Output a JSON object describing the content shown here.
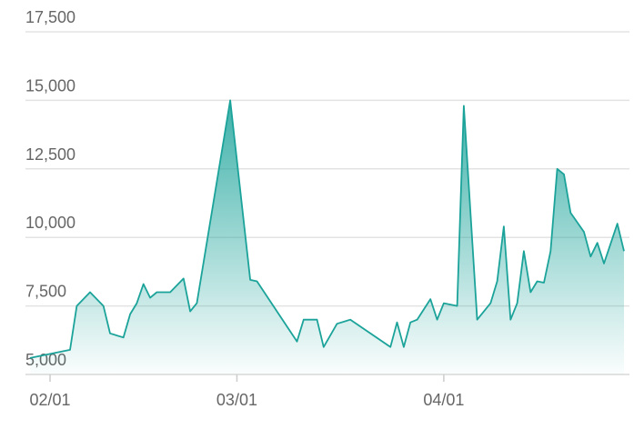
{
  "chart_data": {
    "type": "area",
    "x": [
      "01/29",
      "02/04",
      "02/05",
      "02/07",
      "02/09",
      "02/10",
      "02/12",
      "02/13",
      "02/14",
      "02/15",
      "02/16",
      "02/17",
      "02/19",
      "02/21",
      "02/22",
      "02/23",
      "02/28",
      "03/03",
      "03/04",
      "03/10",
      "03/11",
      "03/13",
      "03/14",
      "03/16",
      "03/18",
      "03/24",
      "03/25",
      "03/26",
      "03/27",
      "03/28",
      "03/30",
      "03/31",
      "04/01",
      "04/03",
      "04/04",
      "04/06",
      "04/08",
      "04/09",
      "04/10",
      "04/11",
      "04/12",
      "04/13",
      "04/14",
      "04/15",
      "04/16",
      "04/17",
      "04/18",
      "04/19",
      "04/20",
      "04/22",
      "04/23",
      "04/24",
      "04/25",
      "04/27",
      "04/28"
    ],
    "values": [
      5600,
      5900,
      7500,
      8000,
      7500,
      6500,
      6350,
      7200,
      7600,
      8300,
      7800,
      8000,
      8000,
      8500,
      7300,
      7600,
      15000,
      8450,
      8400,
      6200,
      7000,
      7000,
      6000,
      6850,
      7000,
      6000,
      6900,
      6000,
      6900,
      7000,
      7750,
      7000,
      7600,
      7500,
      14800,
      7000,
      7600,
      8400,
      10400,
      7000,
      7600,
      9500,
      8000,
      8400,
      8350,
      9500,
      12500,
      12300,
      10900,
      10200,
      9300,
      9800,
      9050,
      10500,
      9500
    ],
    "color": "#1ba39a",
    "xlim": [
      "01/29",
      "04/28"
    ],
    "xticks": [
      "02/01",
      "03/01",
      "04/01"
    ],
    "ylim": [
      5000,
      17500
    ],
    "yticks": [
      {
        "value": 5000,
        "label": "5,000"
      },
      {
        "value": 7500,
        "label": "7,500"
      },
      {
        "value": 10000,
        "label": "10,000"
      },
      {
        "value": 12500,
        "label": "12,500"
      },
      {
        "value": 15000,
        "label": "15,000"
      },
      {
        "value": 17500,
        "label": "17,500"
      }
    ],
    "grid": true
  }
}
